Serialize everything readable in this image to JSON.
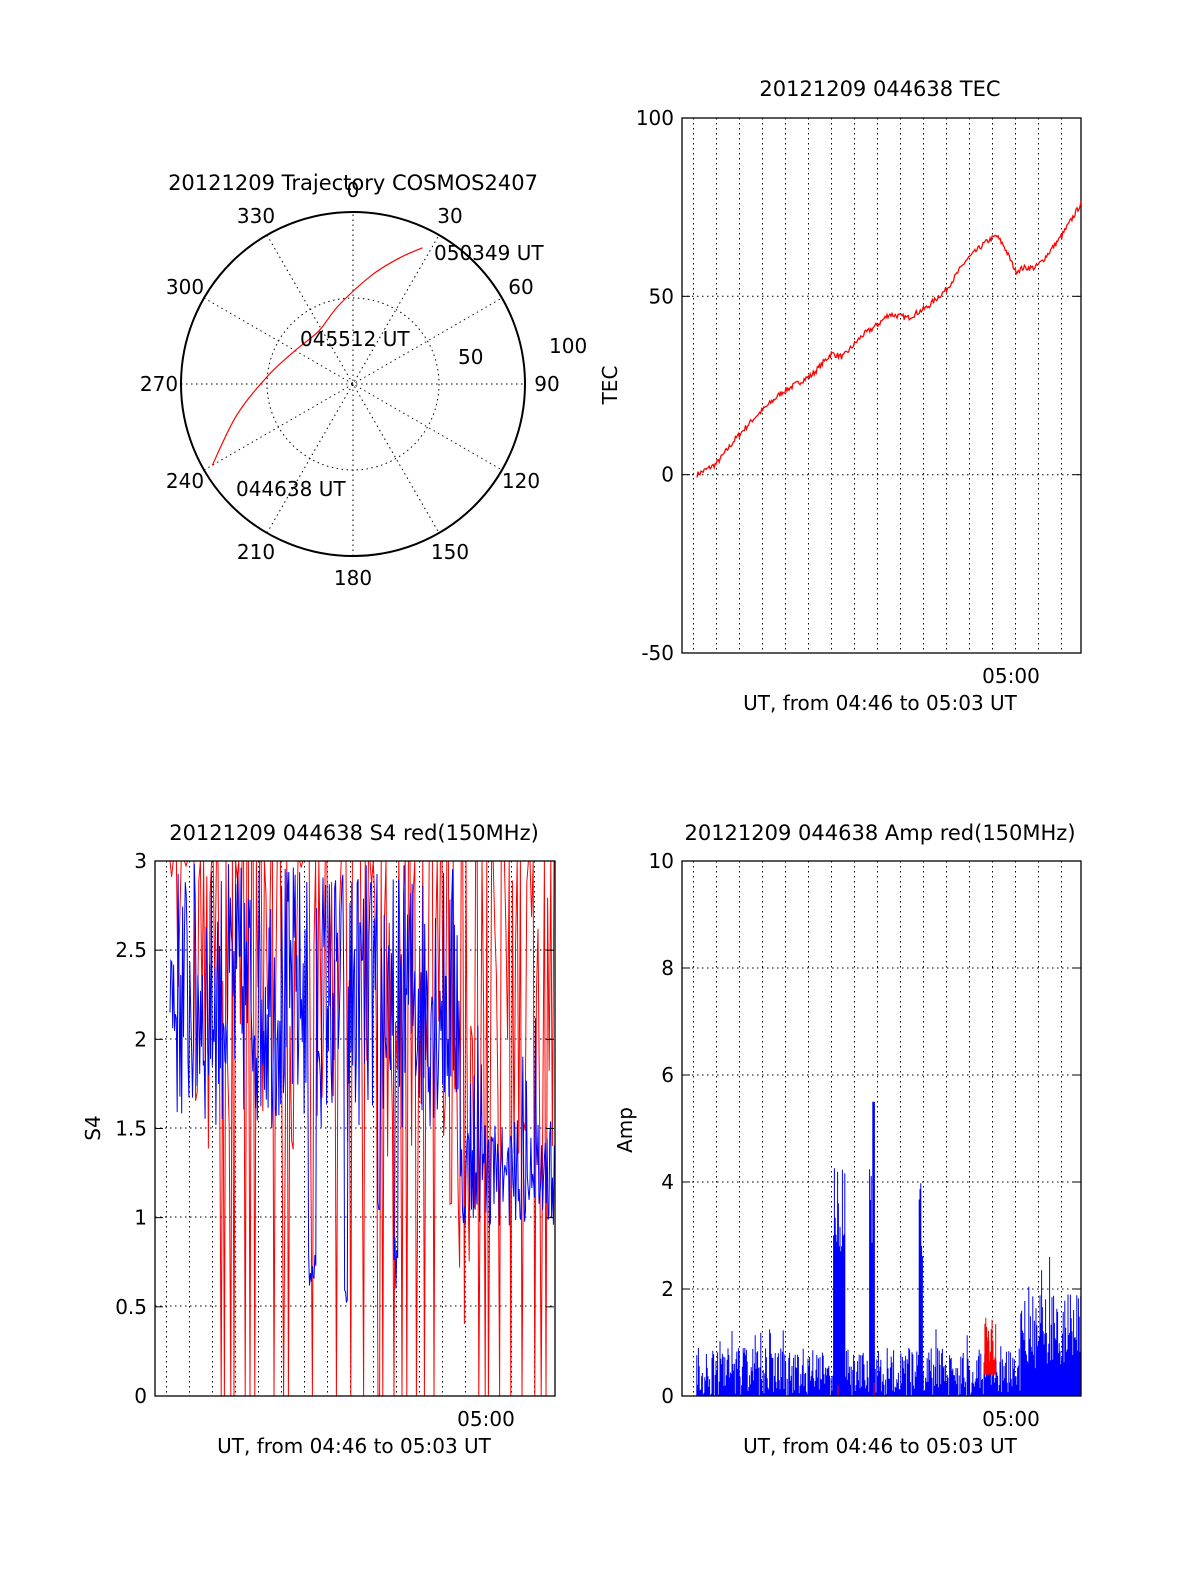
{
  "chart_data": [
    {
      "id": "trajectory",
      "type": "polar",
      "title": "20121209 Trajectory COSMOS2407",
      "angle_labels": [
        "0",
        "30",
        "60",
        "90",
        "120",
        "150",
        "180",
        "210",
        "240",
        "270",
        "300",
        "330"
      ],
      "radius_labels": [
        "50",
        "100"
      ],
      "start_label": "044638 UT",
      "mid_label": "045512 UT",
      "end_label": "050349 UT",
      "track_color": "#ff0000",
      "track": [
        {
          "az": 240,
          "el": 5
        },
        {
          "az": 255,
          "el": 27
        },
        {
          "az": 275,
          "el": 45
        },
        {
          "az": 300,
          "el": 55
        },
        {
          "az": 327,
          "el": 57
        },
        {
          "az": 350,
          "el": 48
        },
        {
          "az": 10,
          "el": 32
        },
        {
          "az": 20,
          "el": 20
        },
        {
          "az": 27,
          "el": 10
        }
      ]
    },
    {
      "id": "tec",
      "type": "line",
      "title": "20121209 044638 TEC",
      "ylabel": "TEC",
      "xlabel": "UT, from 04:46 to 05:03 UT",
      "xtick_label": "05:00",
      "ylim": [
        -50,
        100
      ],
      "yticks": [
        "-50",
        "0",
        "50",
        "100"
      ],
      "series": [
        {
          "color": "#ff0000",
          "x": [
            0,
            0.05,
            0.1,
            0.15,
            0.22,
            0.3,
            0.35,
            0.38,
            0.43,
            0.47,
            0.5,
            0.55,
            0.6,
            0.65,
            0.7,
            0.75,
            0.78,
            0.8,
            0.83,
            0.85,
            0.88,
            0.9,
            0.95,
            1
          ],
          "y": [
            0,
            3,
            10,
            16,
            23,
            28,
            34,
            33,
            39,
            42,
            45,
            44,
            47,
            52,
            60,
            65,
            67,
            64,
            57,
            58,
            58,
            60,
            67,
            76
          ]
        }
      ]
    },
    {
      "id": "s4",
      "type": "line",
      "title": "20121209 044638 S4 red(150MHz)",
      "ylabel": "S4",
      "xlabel": "UT, from 04:46 to 05:03 UT",
      "xtick_label": "05:00",
      "ylim": [
        0,
        3
      ],
      "yticks": [
        "0",
        "0.5",
        "1",
        "1.5",
        "2",
        "2.5",
        "3"
      ],
      "series": [
        {
          "color": "#ff0000"
        },
        {
          "color": "#0000ff"
        }
      ]
    },
    {
      "id": "amp",
      "type": "line",
      "title": "20121209 044638 Amp red(150MHz)",
      "ylabel": "Amp",
      "xlabel": "UT, from 04:46 to 05:03 UT",
      "xtick_label": "05:00",
      "ylim": [
        0,
        10
      ],
      "yticks": [
        "0",
        "2",
        "4",
        "6",
        "8",
        "10"
      ],
      "series": [
        {
          "color": "#0000ff"
        },
        {
          "color": "#ff0000"
        }
      ]
    }
  ]
}
